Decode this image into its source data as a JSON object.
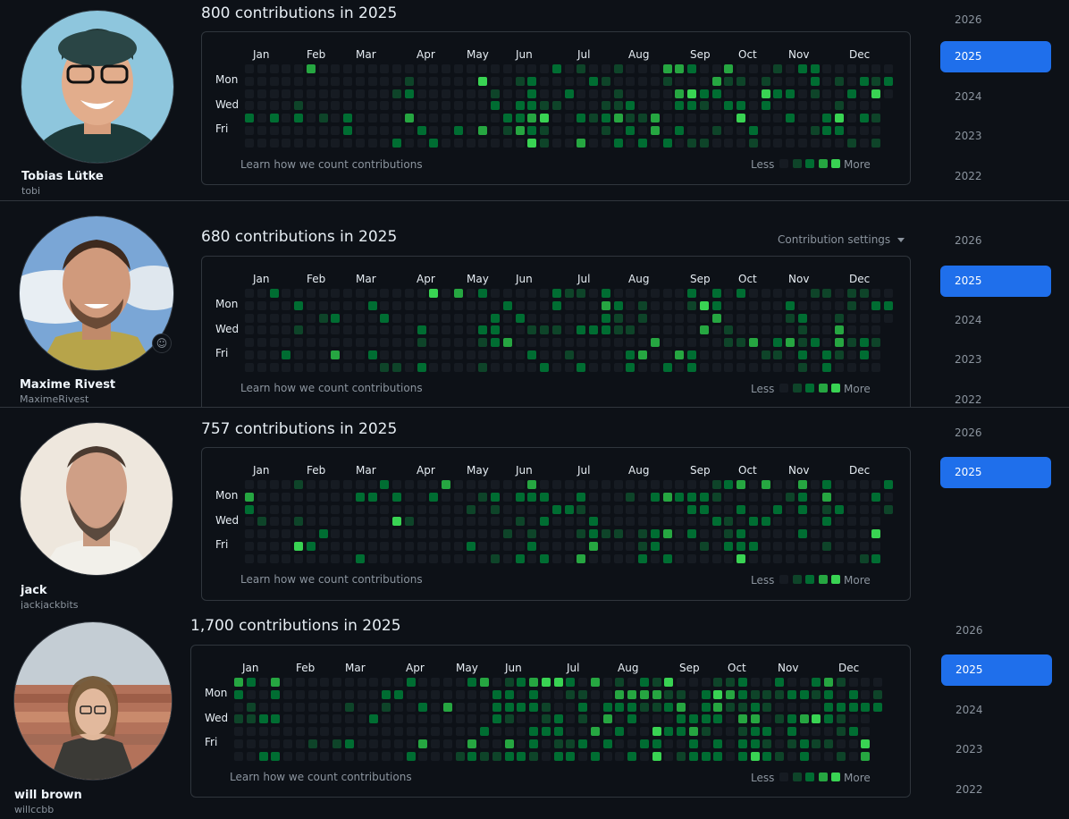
{
  "colors": {
    "level0": "#161b22",
    "level1": "#0e4429",
    "level2": "#006d32",
    "level3": "#26a641",
    "level4": "#39d353",
    "accent": "#1f6feb"
  },
  "common": {
    "months": [
      "Jan",
      "Feb",
      "Mar",
      "Apr",
      "May",
      "Jun",
      "Jul",
      "Aug",
      "Sep",
      "Oct",
      "Nov",
      "Dec"
    ],
    "days": [
      "Mon",
      "Wed",
      "Fri"
    ],
    "learn": "Learn how we count contributions",
    "less": "Less",
    "more": "More"
  },
  "profiles": [
    {
      "name": "Tobias Lütke",
      "login": "tobi",
      "title": "800 contributions in 2025",
      "years": [
        "2026",
        "2025",
        "2024",
        "2023",
        "2022"
      ],
      "selected_year": "2025",
      "seed": 11,
      "density": 0.8,
      "settings_label": ""
    },
    {
      "name": "Maxime Rivest",
      "login": "MaximeRivest",
      "title": "680 contributions in 2025",
      "years": [
        "2026",
        "2025",
        "2024",
        "2023",
        "2022"
      ],
      "selected_year": "2025",
      "seed": 23,
      "density": 0.7,
      "settings_label": "Contribution settings"
    },
    {
      "name": "jack",
      "login": "jackjackbits",
      "title": "757 contributions in 2025",
      "years": [
        "2026",
        "2025"
      ],
      "selected_year": "2025",
      "seed": 37,
      "density": 0.65,
      "settings_label": ""
    },
    {
      "name": "will brown",
      "login": "willccbb",
      "title": "1,700 contributions in 2025",
      "years": [
        "2026",
        "2025",
        "2024",
        "2023",
        "2022"
      ],
      "selected_year": "2025",
      "seed": 53,
      "density": 1.0,
      "settings_label": ""
    }
  ]
}
